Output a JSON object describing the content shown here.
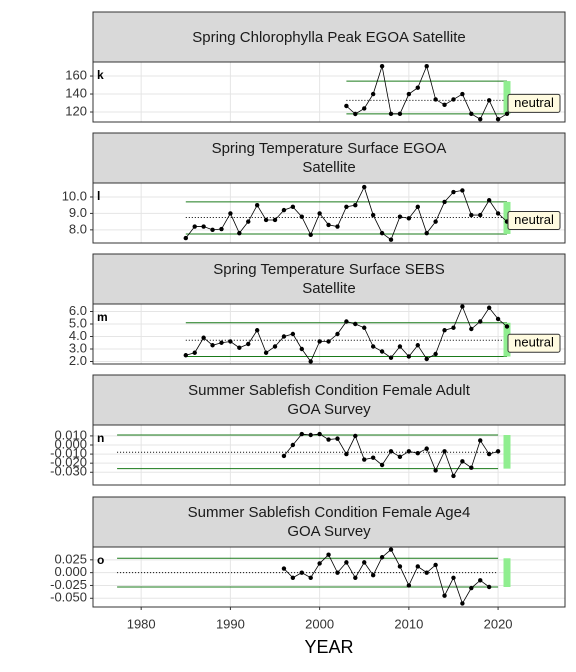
{
  "chart_data": [
    {
      "type": "line",
      "title": "Spring Chlorophylla Peak EGOA Satellite",
      "panel_label": "k",
      "annotation": "neutral",
      "x": [
        2003,
        2004,
        2005,
        2006,
        2007,
        2008,
        2009,
        2010,
        2011,
        2012,
        2013,
        2014,
        2015,
        2016,
        2017,
        2018,
        2019,
        2020,
        2021
      ],
      "values": [
        126.7,
        117.8,
        124,
        140,
        171,
        118,
        118,
        140,
        147,
        171,
        134,
        128,
        134,
        140,
        118,
        112,
        133,
        112,
        118
      ],
      "color": "#000000",
      "band": {
        "upper": 154.4,
        "mean": 133,
        "lower": 118,
        "x": [
          2003,
          2021
        ],
        "color": "#1a7a1a"
      },
      "status": {
        "year": 2021,
        "color": "#90ee90"
      },
      "xlim": [
        1974.6,
        2027.5
      ],
      "xticks": [
        1980,
        1990,
        2000,
        2010,
        2020
      ],
      "ylim": [
        108.9,
        175.6
      ],
      "yticks": [
        120,
        140,
        160
      ],
      "grid": true
    },
    {
      "type": "line",
      "title": "Spring Temperature Surface EGOA\nSatellite",
      "panel_label": "l",
      "annotation": "neutral",
      "x": [
        1985,
        1986,
        1987,
        1988,
        1989,
        1990,
        1991,
        1992,
        1993,
        1994,
        1995,
        1996,
        1997,
        1998,
        1999,
        2000,
        2001,
        2002,
        2003,
        2004,
        2005,
        2006,
        2007,
        2008,
        2009,
        2010,
        2011,
        2012,
        2013,
        2014,
        2015,
        2016,
        2017,
        2018,
        2019,
        2020,
        2021
      ],
      "values": [
        7.5,
        8.2,
        8.2,
        8.0,
        8.05,
        9.0,
        7.8,
        8.5,
        9.5,
        8.6,
        8.6,
        9.2,
        9.4,
        8.8,
        7.7,
        9.0,
        8.3,
        8.2,
        9.4,
        9.5,
        10.6,
        8.9,
        7.8,
        7.4,
        8.8,
        8.7,
        9.4,
        7.8,
        8.5,
        9.7,
        10.3,
        10.4,
        8.9,
        8.9,
        9.8,
        9.0,
        8.5
      ],
      "color": "#000000",
      "band": {
        "upper": 9.7,
        "mean": 8.75,
        "lower": 7.75,
        "x": [
          1985,
          2021
        ],
        "color": "#1a7a1a"
      },
      "status": {
        "year": 2021,
        "color": "#90ee90"
      },
      "xlim": [
        1974.6,
        2027.5
      ],
      "xticks": [
        1980,
        1990,
        2000,
        2010,
        2020
      ],
      "ylim": [
        7.2,
        10.85
      ],
      "yticks": [
        {
          "value": 8,
          "label": "8.0"
        },
        {
          "value": 9,
          "label": "9.0"
        },
        {
          "value": 10,
          "label": "10.0"
        }
      ],
      "grid": true
    },
    {
      "type": "line",
      "title": "Spring Temperature Surface SEBS\nSatellite",
      "panel_label": "m",
      "annotation": "neutral",
      "x": [
        1985,
        1986,
        1987,
        1988,
        1989,
        1990,
        1991,
        1992,
        1993,
        1994,
        1995,
        1996,
        1997,
        1998,
        1999,
        2000,
        2001,
        2002,
        2003,
        2004,
        2005,
        2006,
        2007,
        2008,
        2009,
        2010,
        2011,
        2012,
        2013,
        2014,
        2015,
        2016,
        2017,
        2018,
        2019,
        2020,
        2021
      ],
      "values": [
        2.5,
        2.7,
        3.9,
        3.3,
        3.5,
        3.6,
        3.1,
        3.4,
        4.5,
        2.7,
        3.2,
        4.0,
        4.2,
        3.0,
        2.0,
        3.6,
        3.6,
        4.2,
        5.2,
        5.0,
        4.7,
        3.2,
        2.8,
        2.3,
        3.2,
        2.4,
        3.3,
        2.2,
        2.6,
        4.5,
        4.7,
        6.4,
        4.6,
        5.2,
        6.3,
        5.4,
        4.8
      ],
      "color": "#000000",
      "band": {
        "upper": 5.1,
        "mean": 3.7,
        "lower": 2.4,
        "x": [
          1985,
          2021
        ],
        "color": "#1a7a1a"
      },
      "status": {
        "year": 2021,
        "color": "#90ee90"
      },
      "xlim": [
        1974.6,
        2027.5
      ],
      "xticks": [
        1980,
        1990,
        2000,
        2010,
        2020
      ],
      "ylim": [
        1.8,
        6.6
      ],
      "yticks": [
        {
          "value": 2,
          "label": "2.0"
        },
        {
          "value": 3,
          "label": "3.0"
        },
        {
          "value": 4,
          "label": "4.0"
        },
        {
          "value": 5,
          "label": "5.0"
        },
        {
          "value": 6,
          "label": "6.0"
        }
      ],
      "grid": true
    },
    {
      "type": "line",
      "title": "Summer Sablefish Condition Female Adult\nGOA Survey",
      "panel_label": "n",
      "x": [
        1996,
        1997,
        1998,
        1999,
        2000,
        2001,
        2002,
        2003,
        2004,
        2005,
        2006,
        2007,
        2008,
        2009,
        2010,
        2011,
        2012,
        2013,
        2014,
        2015,
        2016,
        2017,
        2018,
        2019,
        2020
      ],
      "values": [
        -0.012,
        0.0,
        0.012,
        0.011,
        0.012,
        0.006,
        0.007,
        -0.01,
        0.01,
        -0.016,
        -0.014,
        -0.022,
        -0.007,
        -0.013,
        -0.007,
        -0.009,
        -0.004,
        -0.028,
        -0.007,
        -0.034,
        -0.018,
        -0.025,
        0.005,
        -0.01,
        -0.007
      ],
      "color": "#000000",
      "band": {
        "upper": 0.011,
        "mean": -0.008,
        "lower": -0.026,
        "x": [
          1977.3,
          2020
        ],
        "color": "#1a7a1a"
      },
      "status": {
        "year": 2021,
        "color": "#90ee90"
      },
      "xlim": [
        1974.6,
        2027.5
      ],
      "xticks": [
        1980,
        1990,
        2000,
        2010,
        2020
      ],
      "ylim": [
        -0.044,
        0.022
      ],
      "yticks": [
        {
          "value": -0.03,
          "label": "-0.030"
        },
        {
          "value": -0.02,
          "label": "-0.020"
        },
        {
          "value": -0.01,
          "label": "-0.010"
        },
        {
          "value": 0,
          "label": "0.000"
        },
        {
          "value": 0.01,
          "label": "0.010"
        }
      ],
      "grid": true
    },
    {
      "type": "line",
      "title": "Summer Sablefish Condition Female Age4\nGOA Survey",
      "panel_label": "o",
      "x": [
        1996,
        1997,
        1998,
        1999,
        2000,
        2001,
        2002,
        2003,
        2004,
        2005,
        2006,
        2007,
        2008,
        2009,
        2010,
        2011,
        2012,
        2013,
        2014,
        2015,
        2016,
        2017,
        2018,
        2019
      ],
      "values": [
        0.008,
        -0.01,
        0.0,
        -0.01,
        0.018,
        0.035,
        0.0,
        0.02,
        -0.01,
        0.02,
        -0.005,
        0.03,
        0.045,
        0.012,
        -0.025,
        0.012,
        0.0,
        0.015,
        -0.045,
        -0.01,
        -0.06,
        -0.03,
        -0.015,
        -0.028
      ],
      "color": "#000000",
      "band": {
        "upper": 0.028,
        "mean": 0.0,
        "lower": -0.028,
        "x": [
          1977.3,
          2020
        ],
        "color": "#1a7a1a"
      },
      "status": {
        "year": 2021,
        "color": "#90ee90"
      },
      "xlim": [
        1974.6,
        2027.5
      ],
      "xticks": [
        1980,
        1990,
        2000,
        2010,
        2020
      ],
      "xlabel": "YEAR",
      "ylim": [
        -0.067,
        0.05
      ],
      "yticks": [
        {
          "value": -0.05,
          "label": "-0.050"
        },
        {
          "value": -0.025,
          "label": "-0.025"
        },
        {
          "value": 0,
          "label": "0.000"
        },
        {
          "value": 0.025,
          "label": "0.025"
        }
      ],
      "grid": true
    }
  ]
}
